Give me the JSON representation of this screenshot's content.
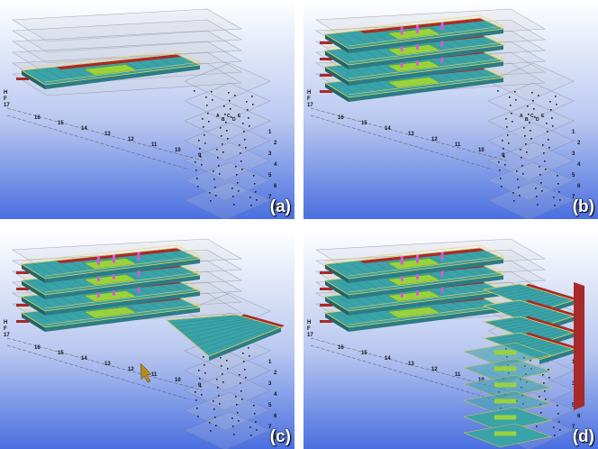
{
  "panels": [
    {
      "id": "a",
      "label": "(a)",
      "floors_detailed": 1,
      "show_wing": false,
      "wing_floors": 0
    },
    {
      "id": "b",
      "label": "(b)",
      "floors_detailed": 4,
      "show_wing": false,
      "wing_floors": 0
    },
    {
      "id": "c",
      "label": "(c)",
      "floors_detailed": 4,
      "show_wing": true,
      "wing_floors": 1
    },
    {
      "id": "d",
      "label": "(d)",
      "floors_detailed": 4,
      "show_wing": true,
      "wing_floors": 4
    }
  ],
  "grid_labels": {
    "rows": [
      "H",
      "F",
      "17"
    ],
    "columns": [
      "16",
      "15",
      "14",
      "13",
      "12",
      "11",
      "10",
      "9"
    ],
    "wing_columns": [
      "A",
      "B",
      "C",
      "D",
      "E"
    ],
    "wing_rows": [
      "1",
      "2",
      "3",
      "4",
      "5",
      "6",
      "7",
      "8"
    ]
  },
  "colors": {
    "sky_top": "#ffffff",
    "sky_bottom": "#4a6fe0",
    "slab": "#3aa3a8",
    "slab_dark": "#2a7d86",
    "wall_red": "#a8292a",
    "accent_green": "#9ad23c",
    "accent_magenta": "#d45ad8",
    "rail_yellow": "#e6d35a",
    "ghost": "#c8cbd6",
    "cursor": "#b88a1a"
  }
}
